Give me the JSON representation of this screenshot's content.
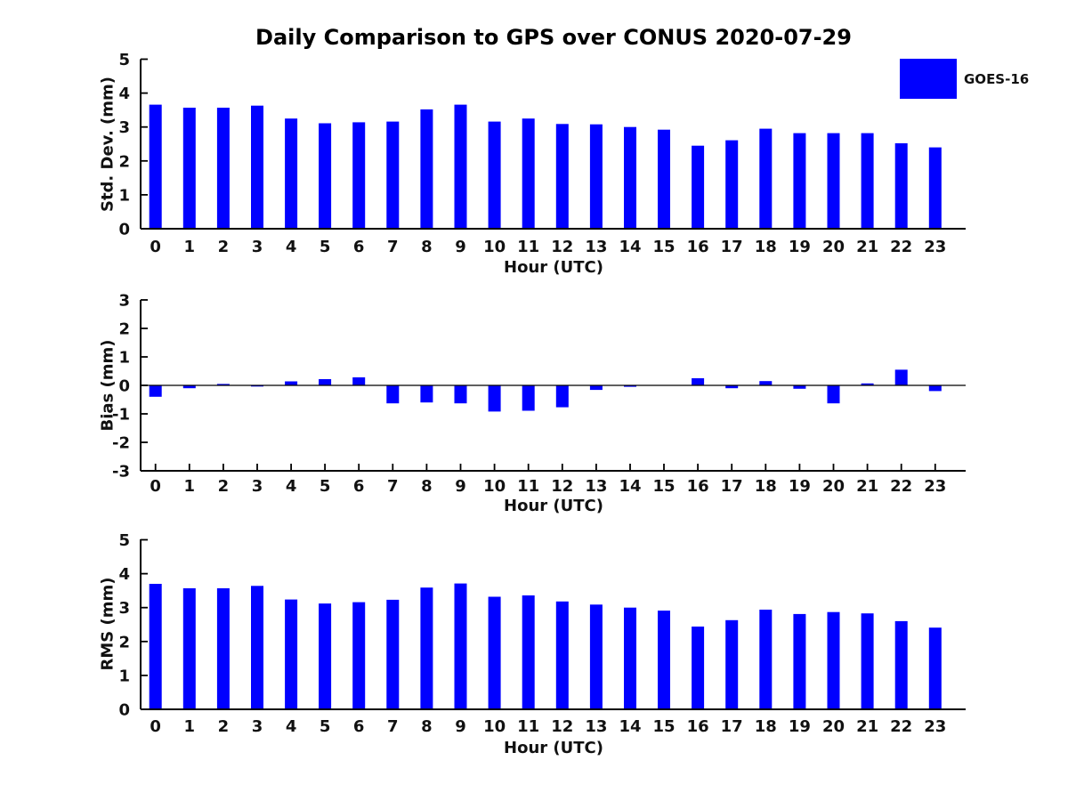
{
  "title": "Daily Comparison to GPS over CONUS 2020-07-29",
  "legend": {
    "label": "GOES-16",
    "color": "#0000ff",
    "position": "upper right"
  },
  "colors": {
    "bar": "#0000ff",
    "axis": "#000000",
    "text": "#111111",
    "background": "#ffffff"
  },
  "chart_data": [
    {
      "type": "bar",
      "ylabel": "Std. Dev. (mm)",
      "xlabel": "Hour (UTC)",
      "categories": [
        "0",
        "1",
        "2",
        "3",
        "4",
        "5",
        "6",
        "7",
        "8",
        "9",
        "10",
        "11",
        "12",
        "13",
        "14",
        "15",
        "16",
        "17",
        "18",
        "19",
        "20",
        "21",
        "22",
        "23"
      ],
      "series": [
        {
          "name": "GOES-16",
          "values": [
            3.66,
            3.57,
            3.57,
            3.63,
            3.25,
            3.11,
            3.14,
            3.16,
            3.52,
            3.66,
            3.16,
            3.25,
            3.09,
            3.08,
            3.0,
            2.92,
            2.45,
            2.61,
            2.95,
            2.82,
            2.82,
            2.82,
            2.52,
            2.4
          ]
        }
      ],
      "ylim": [
        0,
        5
      ],
      "yticks": [
        0,
        1,
        2,
        3,
        4,
        5
      ],
      "grid": false
    },
    {
      "type": "bar",
      "ylabel": "Bias (mm)",
      "xlabel": "Hour (UTC)",
      "categories": [
        "0",
        "1",
        "2",
        "3",
        "4",
        "5",
        "6",
        "7",
        "8",
        "9",
        "10",
        "11",
        "12",
        "13",
        "14",
        "15",
        "16",
        "17",
        "18",
        "19",
        "20",
        "21",
        "22",
        "23"
      ],
      "series": [
        {
          "name": "GOES-16",
          "values": [
            -0.4,
            -0.1,
            0.05,
            -0.04,
            0.14,
            0.22,
            0.28,
            -0.63,
            -0.6,
            -0.63,
            -0.92,
            -0.89,
            -0.77,
            -0.16,
            -0.05,
            0.0,
            0.25,
            -0.1,
            0.15,
            -0.12,
            -0.63,
            0.07,
            0.55,
            -0.2
          ]
        }
      ],
      "ylim": [
        -3,
        3
      ],
      "yticks": [
        -3,
        -2,
        -1,
        0,
        1,
        2,
        3
      ],
      "grid": false
    },
    {
      "type": "bar",
      "ylabel": "RMS (mm)",
      "xlabel": "Hour (UTC)",
      "categories": [
        "0",
        "1",
        "2",
        "3",
        "4",
        "5",
        "6",
        "7",
        "8",
        "9",
        "10",
        "11",
        "12",
        "13",
        "14",
        "15",
        "16",
        "17",
        "18",
        "19",
        "20",
        "21",
        "22",
        "23"
      ],
      "series": [
        {
          "name": "GOES-16",
          "values": [
            3.7,
            3.57,
            3.57,
            3.64,
            3.24,
            3.12,
            3.16,
            3.23,
            3.59,
            3.71,
            3.32,
            3.36,
            3.18,
            3.09,
            3.0,
            2.91,
            2.44,
            2.63,
            2.94,
            2.81,
            2.87,
            2.83,
            2.6,
            2.41
          ]
        }
      ],
      "ylim": [
        0,
        5
      ],
      "yticks": [
        0,
        1,
        2,
        3,
        4,
        5
      ],
      "grid": false
    }
  ]
}
